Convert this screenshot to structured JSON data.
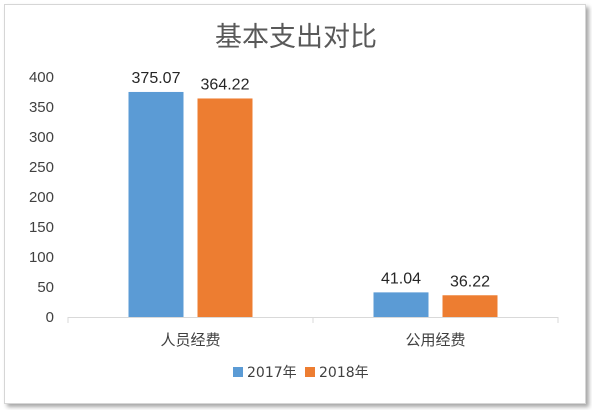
{
  "chart_data": {
    "type": "bar",
    "title": "基本支出对比",
    "categories": [
      "人员经费",
      "公用经费"
    ],
    "series": [
      {
        "name": "2017年",
        "values": [
          375.07,
          41.04
        ],
        "color": "#5B9BD5"
      },
      {
        "name": "2018年",
        "values": [
          364.22,
          36.22
        ],
        "color": "#ED7D31"
      }
    ],
    "data_labels": [
      [
        "375.07",
        "41.04"
      ],
      [
        "364.22",
        "36.22"
      ]
    ],
    "ylim": [
      0,
      400
    ],
    "yticks": [
      "0",
      "50",
      "100",
      "150",
      "200",
      "250",
      "300",
      "350",
      "400"
    ],
    "grid": false,
    "legend": "bottom"
  }
}
